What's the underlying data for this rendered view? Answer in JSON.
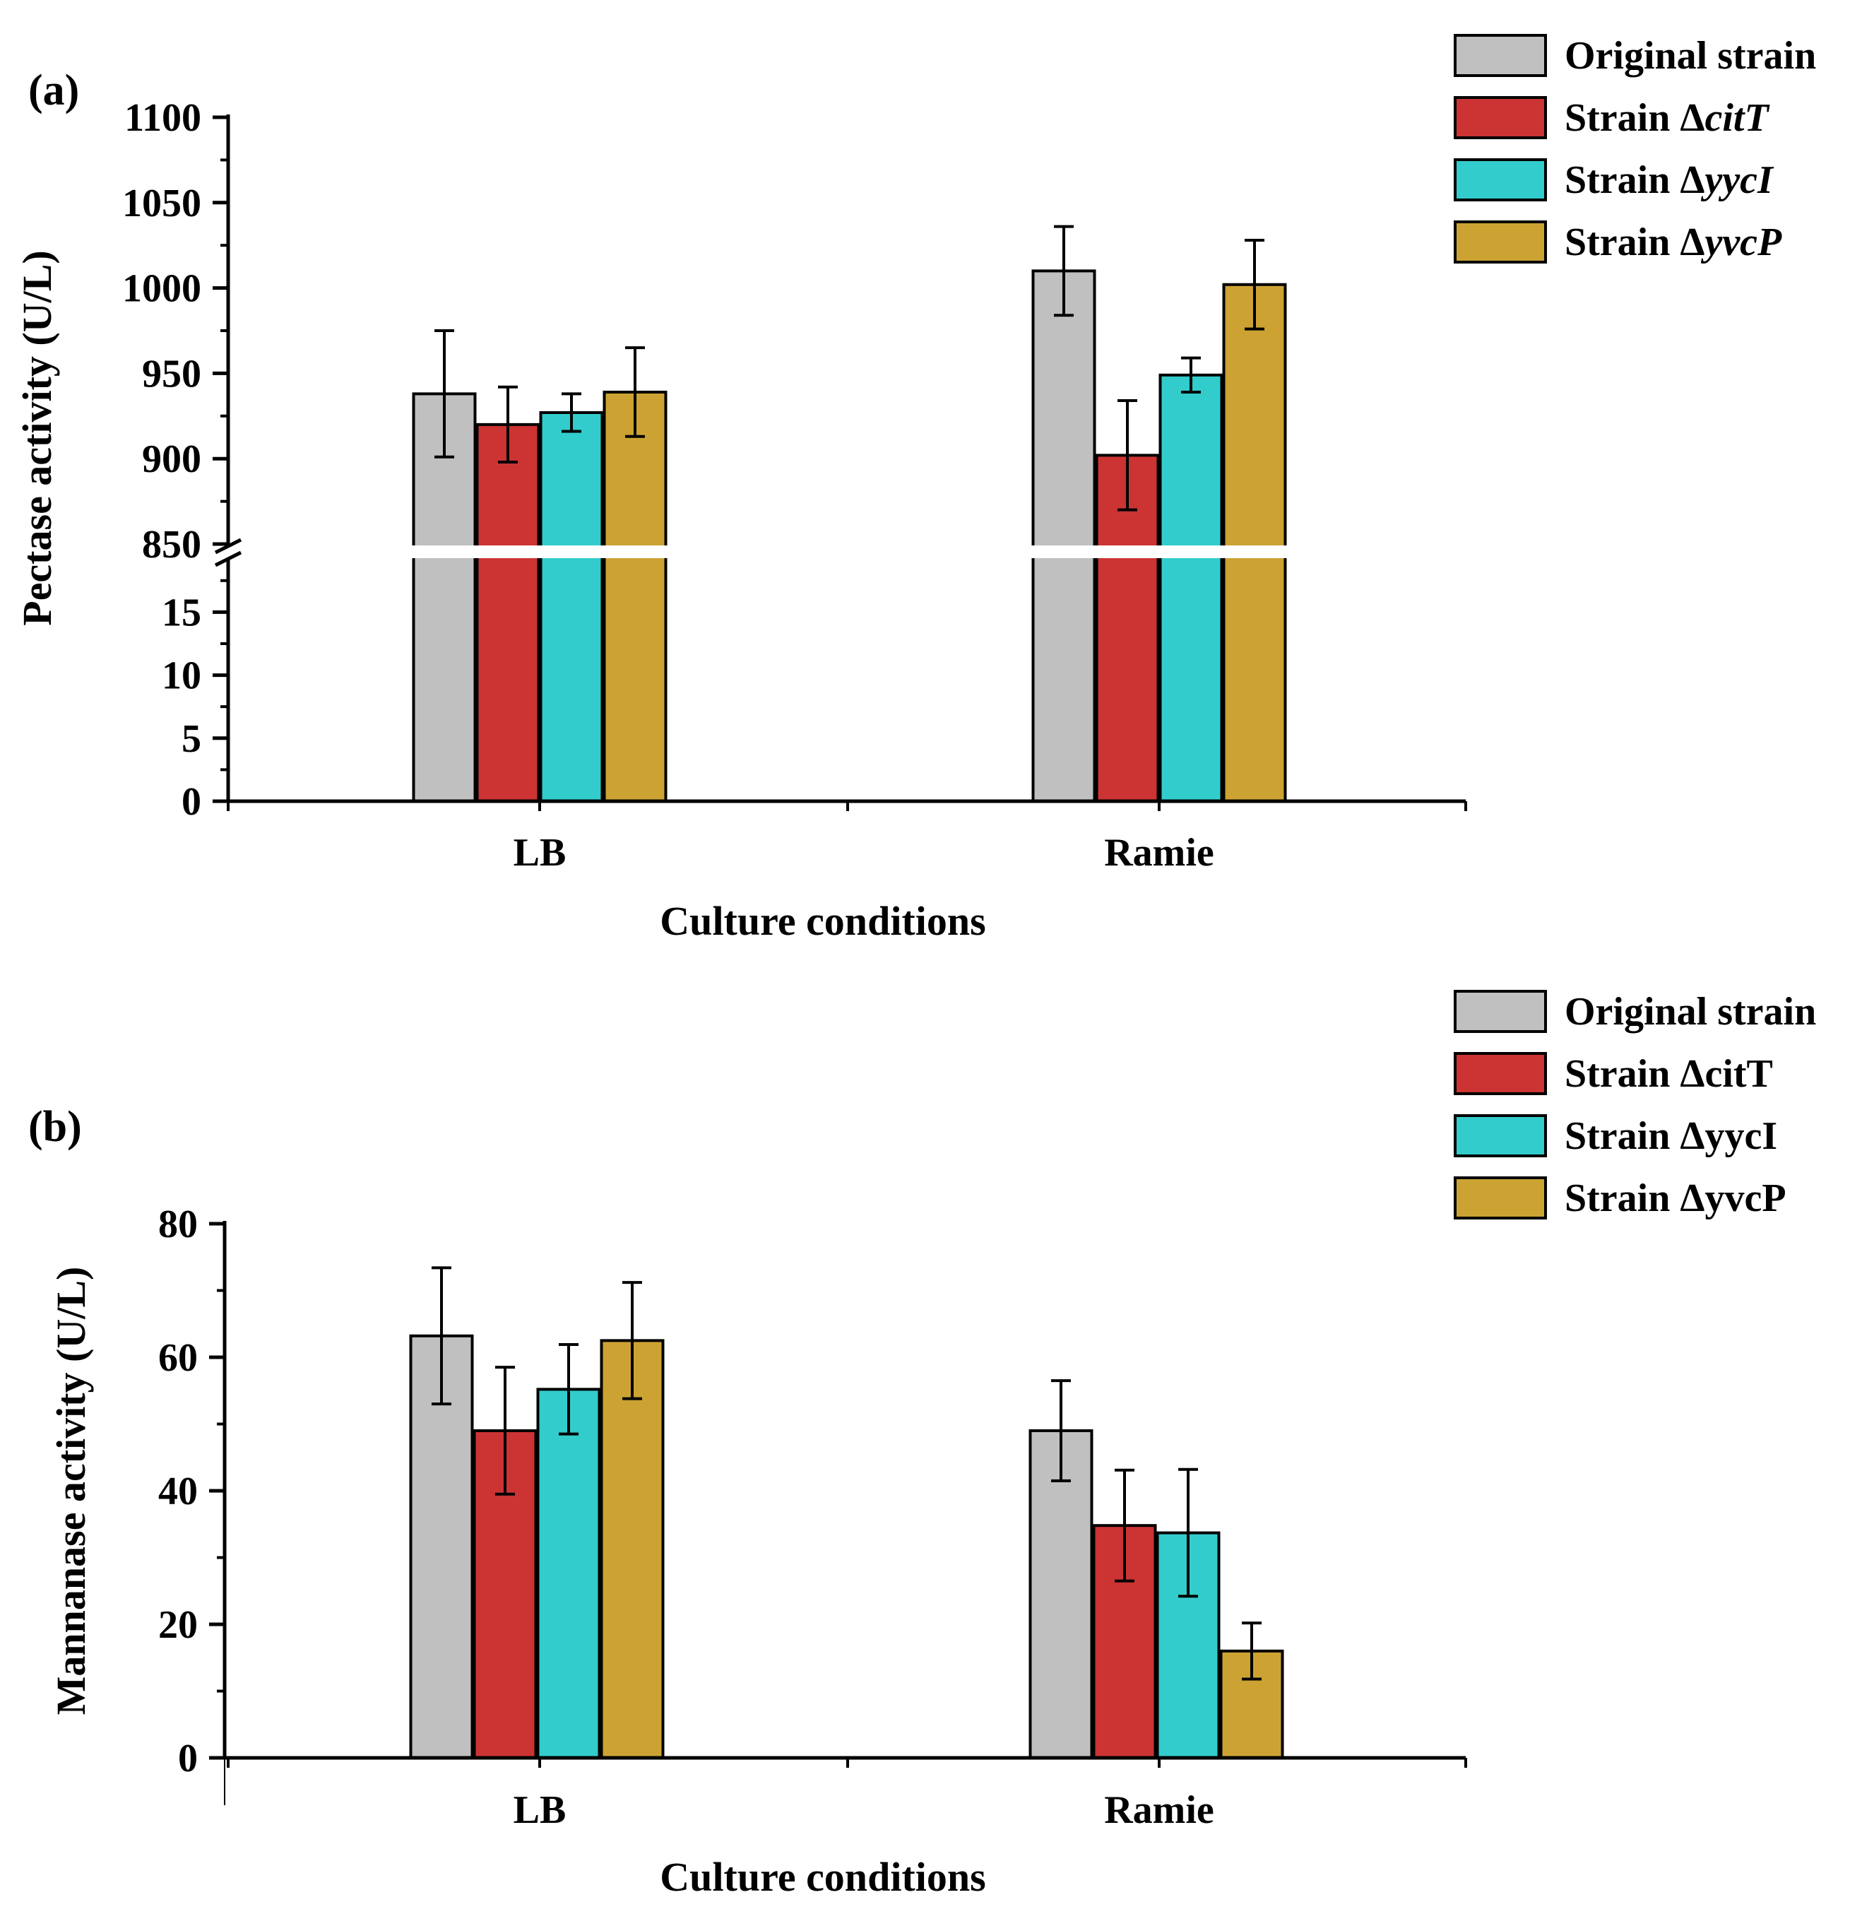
{
  "colors": {
    "original": "#c0c0c0",
    "citT": "#cc3333",
    "yycI": "#33cccc",
    "yvcP": "#cca333",
    "axis": "#000000"
  },
  "chart_data": [
    {
      "type": "bar",
      "panel_label": "(a)",
      "xlabel": "Culture conditions",
      "ylabel": "Pectase activity (U/L)",
      "categories": [
        "LB",
        "Ramie"
      ],
      "broken_axis": {
        "lower_range": [
          0,
          19
        ],
        "upper_range": [
          850,
          1100
        ],
        "lower_ticks": [
          0,
          5,
          10,
          15
        ],
        "upper_ticks": [
          850,
          900,
          950,
          1000,
          1050,
          1100
        ]
      },
      "series": [
        {
          "name": "Original strain",
          "prefix": "Strain ",
          "values": [
            938,
            1010
          ],
          "errors": [
            37,
            26
          ]
        },
        {
          "name": "Strain ΔcitT",
          "prefix": "Strain Δ",
          "italic": "citT",
          "values": [
            920,
            902
          ],
          "errors": [
            22,
            32
          ]
        },
        {
          "name": "Strain ΔyycI",
          "prefix": "Strain Δ",
          "italic": "yycI",
          "values": [
            927,
            949
          ],
          "errors": [
            11,
            10
          ]
        },
        {
          "name": "Strain ΔyvcP",
          "prefix": "Strain Δ",
          "italic": "yvcP",
          "values": [
            939,
            1002
          ],
          "errors": [
            26,
            26
          ]
        }
      ]
    },
    {
      "type": "bar",
      "panel_label": "(b)",
      "xlabel": "Culture conditions",
      "ylabel": "Mannanase activity (U/L)",
      "categories": [
        "LB",
        "Ramie"
      ],
      "ylim": [
        0,
        80
      ],
      "yticks": [
        0,
        20,
        40,
        60,
        80
      ],
      "series": [
        {
          "name": "Original strain",
          "values": [
            63.2,
            49.0
          ],
          "errors": [
            10.2,
            7.5
          ]
        },
        {
          "name": "Strain ΔcitT",
          "values": [
            49.0,
            34.8
          ],
          "errors": [
            9.5,
            8.3
          ]
        },
        {
          "name": "Strain ΔyycI",
          "values": [
            55.2,
            33.7
          ],
          "errors": [
            6.7,
            9.5
          ]
        },
        {
          "name": "Strain ΔyvcP",
          "values": [
            62.5,
            16.0
          ],
          "errors": [
            8.7,
            4.2
          ]
        }
      ]
    }
  ]
}
